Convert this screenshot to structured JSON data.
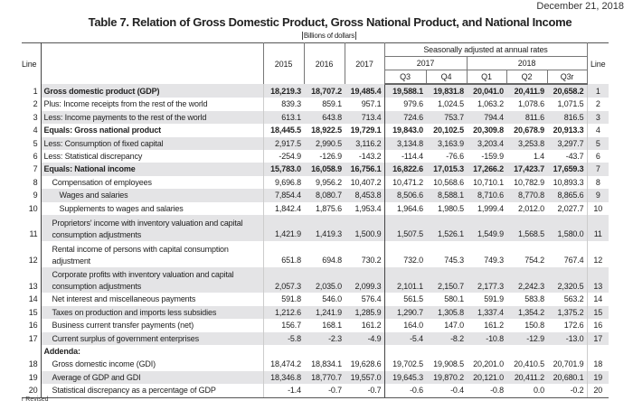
{
  "date": "December 21, 2018",
  "title": "Table 7. Relation of Gross Domestic Product, Gross National Product, and National Income",
  "units": "Billions of dollars",
  "header": {
    "line": "Line",
    "seasonal": "Seasonally adjusted at annual rates",
    "years": [
      "2015",
      "2016",
      "2017"
    ],
    "q_years": [
      "2017",
      "2018"
    ],
    "quarters": [
      "Q3",
      "Q4",
      "Q1",
      "Q2",
      "Q3r"
    ]
  },
  "rows": [
    {
      "line": "1",
      "label": "Gross domestic product (GDP)",
      "values": [
        "18,219.3",
        "18,707.2",
        "19,485.4",
        "19,588.1",
        "19,831.8",
        "20,041.0",
        "20,411.9",
        "20,658.2"
      ]
    },
    {
      "line": "2",
      "label": "Plus: Income receipts from the rest of the world",
      "values": [
        "839.3",
        "859.1",
        "957.1",
        "979.6",
        "1,024.5",
        "1,063.2",
        "1,078.6",
        "1,071.5"
      ]
    },
    {
      "line": "3",
      "label": "Less: Income payments to the rest of the world",
      "values": [
        "613.1",
        "643.8",
        "713.4",
        "724.6",
        "753.7",
        "794.4",
        "811.6",
        "816.5"
      ]
    },
    {
      "line": "4",
      "label": "Equals: Gross national product",
      "values": [
        "18,445.5",
        "18,922.5",
        "19,729.1",
        "19,843.0",
        "20,102.5",
        "20,309.8",
        "20,678.9",
        "20,913.3"
      ]
    },
    {
      "line": "5",
      "label": "Less: Consumption of fixed capital",
      "values": [
        "2,917.5",
        "2,990.5",
        "3,116.2",
        "3,134.8",
        "3,163.9",
        "3,203.4",
        "3,253.8",
        "3,297.7"
      ]
    },
    {
      "line": "6",
      "label": "Less: Statistical discrepancy",
      "values": [
        "-254.9",
        "-126.9",
        "-143.2",
        "-114.4",
        "-76.6",
        "-159.9",
        "1.4",
        "-43.7"
      ]
    },
    {
      "line": "7",
      "label": "Equals: National income",
      "values": [
        "15,783.0",
        "16,058.9",
        "16,756.1",
        "16,822.6",
        "17,015.3",
        "17,266.2",
        "17,423.7",
        "17,659.3"
      ]
    },
    {
      "line": "8",
      "label": "Compensation of employees",
      "values": [
        "9,696.8",
        "9,956.2",
        "10,407.2",
        "10,471.2",
        "10,568.6",
        "10,710.1",
        "10,782.9",
        "10,893.3"
      ]
    },
    {
      "line": "9",
      "label": "Wages and salaries",
      "values": [
        "7,854.4",
        "8,080.7",
        "8,453.8",
        "8,506.6",
        "8,588.1",
        "8,710.6",
        "8,770.8",
        "8,865.6"
      ]
    },
    {
      "line": "10",
      "label": "Supplements to wages and salaries",
      "values": [
        "1,842.4",
        "1,875.6",
        "1,953.4",
        "1,964.6",
        "1,980.5",
        "1,999.4",
        "2,012.0",
        "2,027.7"
      ]
    },
    {
      "line": "11",
      "label": "Proprietors' income with inventory valuation and capital consumption adjustments",
      "values": [
        "1,421.9",
        "1,419.3",
        "1,500.9",
        "1,507.5",
        "1,526.1",
        "1,549.9",
        "1,568.5",
        "1,580.0"
      ]
    },
    {
      "line": "12",
      "label": "Rental income of persons with capital consumption adjustment",
      "values": [
        "651.8",
        "694.8",
        "730.2",
        "732.0",
        "745.3",
        "749.3",
        "754.2",
        "767.4"
      ]
    },
    {
      "line": "13",
      "label": "Corporate profits with inventory valuation and capital consumption adjustments",
      "values": [
        "2,057.3",
        "2,035.0",
        "2,099.3",
        "2,101.1",
        "2,150.7",
        "2,177.3",
        "2,242.3",
        "2,320.5"
      ]
    },
    {
      "line": "14",
      "label": "Net interest and miscellaneous payments",
      "values": [
        "591.8",
        "546.0",
        "576.4",
        "561.5",
        "580.1",
        "591.9",
        "583.8",
        "563.2"
      ]
    },
    {
      "line": "15",
      "label": "Taxes on production and imports less subsidies",
      "values": [
        "1,212.6",
        "1,241.9",
        "1,285.9",
        "1,290.7",
        "1,305.8",
        "1,337.4",
        "1,354.2",
        "1,375.2"
      ]
    },
    {
      "line": "16",
      "label": "Business current transfer payments (net)",
      "values": [
        "156.7",
        "168.1",
        "161.2",
        "164.0",
        "147.0",
        "161.2",
        "150.8",
        "172.6"
      ]
    },
    {
      "line": "17",
      "label": "Current surplus of government enterprises",
      "values": [
        "-5.8",
        "-2.3",
        "-4.9",
        "-5.4",
        "-8.2",
        "-10.8",
        "-12.9",
        "-13.0"
      ]
    },
    {
      "line": "",
      "label": "Addenda:",
      "values": [
        "",
        "",
        "",
        "",
        "",
        "",
        "",
        ""
      ]
    },
    {
      "line": "18",
      "label": "Gross domestic income (GDI)",
      "values": [
        "18,474.2",
        "18,834.1",
        "19,628.6",
        "19,702.5",
        "19,908.5",
        "20,201.0",
        "20,410.5",
        "20,701.9"
      ]
    },
    {
      "line": "19",
      "label": "Average of GDP and GDI",
      "values": [
        "18,346.8",
        "18,770.7",
        "19,557.0",
        "19,645.3",
        "19,870.2",
        "20,121.0",
        "20,411.2",
        "20,680.1"
      ]
    },
    {
      "line": "20",
      "label": "Statistical discrepancy as a percentage of GDP",
      "values": [
        "-1.4",
        "-0.7",
        "-0.7",
        "-0.6",
        "-0.4",
        "-0.8",
        "0.0",
        "-0.2"
      ]
    }
  ],
  "footnote": "r Revised",
  "colors": {
    "row_shade": "#e4e4e6"
  }
}
